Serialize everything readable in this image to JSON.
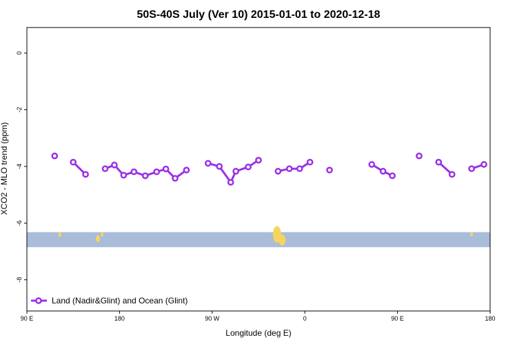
{
  "chart_data": {
    "type": "line",
    "title": "50S-40S July (Ver 10)   2015-01-01 to 2020-12-18",
    "xlabel": "Longitude (deg E)",
    "ylabel": "XCO2 - MLO trend (ppm)",
    "xlim": [
      90,
      540
    ],
    "ylim": [
      -9.1,
      0.9
    ],
    "x_ticks": [
      {
        "value": 90,
        "label": "90 E"
      },
      {
        "value": 180,
        "label": "180"
      },
      {
        "value": 270,
        "label": "90 W"
      },
      {
        "value": 360,
        "label": "0"
      },
      {
        "value": 450,
        "label": "90 E"
      },
      {
        "value": 540,
        "label": "180"
      }
    ],
    "y_ticks": [
      {
        "value": 0,
        "label": "0"
      },
      {
        "value": -2,
        "label": "-2"
      },
      {
        "value": -4,
        "label": "-4"
      },
      {
        "value": -6,
        "label": "-6"
      },
      {
        "value": -8,
        "label": "-8"
      }
    ],
    "legend": {
      "position": "bottom-left"
    },
    "series": [
      {
        "name": "Land (Nadir&Glint) and Ocean (Glint)",
        "color": "#9b30e6",
        "segments": [
          [
            {
              "x": 117,
              "y": -3.63
            }
          ],
          [
            {
              "x": 135,
              "y": -3.85
            },
            {
              "x": 147,
              "y": -4.28
            }
          ],
          [
            {
              "x": 166,
              "y": -4.08
            },
            {
              "x": 175,
              "y": -3.95
            },
            {
              "x": 184,
              "y": -4.31
            },
            {
              "x": 194,
              "y": -4.19
            },
            {
              "x": 205,
              "y": -4.33
            },
            {
              "x": 216,
              "y": -4.19
            },
            {
              "x": 225,
              "y": -4.09
            },
            {
              "x": 234,
              "y": -4.42
            },
            {
              "x": 245,
              "y": -4.13
            }
          ],
          [
            {
              "x": 266,
              "y": -3.89
            },
            {
              "x": 277,
              "y": -4.0
            },
            {
              "x": 288,
              "y": -4.56
            },
            {
              "x": 293,
              "y": -4.17
            },
            {
              "x": 305,
              "y": -4.02
            },
            {
              "x": 315,
              "y": -3.78
            }
          ],
          [
            {
              "x": 334,
              "y": -4.17
            },
            {
              "x": 345,
              "y": -4.08
            },
            {
              "x": 355,
              "y": -4.08
            },
            {
              "x": 365,
              "y": -3.85
            }
          ],
          [
            {
              "x": 384,
              "y": -4.13
            }
          ],
          [
            {
              "x": 425,
              "y": -3.93
            },
            {
              "x": 436,
              "y": -4.17
            },
            {
              "x": 445,
              "y": -4.33
            }
          ],
          [
            {
              "x": 471,
              "y": -3.63
            }
          ],
          [
            {
              "x": 490,
              "y": -3.85
            },
            {
              "x": 503,
              "y": -4.28
            }
          ],
          [
            {
              "x": 522,
              "y": -4.08
            },
            {
              "x": 534,
              "y": -3.93
            }
          ]
        ]
      }
    ],
    "map_strip": {
      "y_range": [
        -6.85,
        -6.32
      ],
      "ocean_color": "#a9bcd9",
      "land_color": "#f6d55c"
    }
  }
}
